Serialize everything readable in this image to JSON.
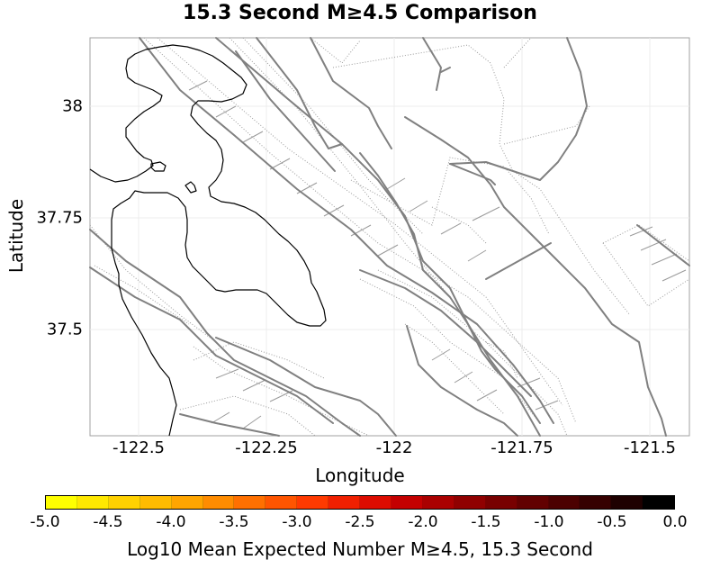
{
  "title": "15.3 Second M≥4.5 Comparison",
  "map": {
    "xlabel": "Longitude",
    "ylabel": "Latitude",
    "lon_range": [
      -122.6,
      -121.44
    ],
    "lat_range": [
      37.27,
      38.15
    ],
    "x_ticks": [
      "-122.5",
      "-122.25",
      "-122",
      "-121.75",
      "-121.5"
    ],
    "y_ticks": [
      "38",
      "37.75",
      "37.5"
    ],
    "grid": true,
    "fault_color": "#808080",
    "coastline_color": "#000000"
  },
  "colorbar": {
    "label": "Log10 Mean Expected Number M≥4.5, 15.3 Second",
    "tick_labels": [
      "-5.0",
      "-4.5",
      "-4.0",
      "-3.5",
      "-3.0",
      "-2.5",
      "-2.0",
      "-1.5",
      "-1.0",
      "-0.5",
      "0.0"
    ],
    "range": [
      -5.0,
      0.0
    ],
    "colors": [
      "#ffff00",
      "#ffe800",
      "#ffd100",
      "#ffbb00",
      "#ffa500",
      "#ff8c00",
      "#ff7000",
      "#ff5500",
      "#ff3a00",
      "#f02000",
      "#dd0c00",
      "#c40000",
      "#aa0000",
      "#900000",
      "#780000",
      "#620000",
      "#4c0000",
      "#360000",
      "#1e0000",
      "#000000"
    ]
  }
}
